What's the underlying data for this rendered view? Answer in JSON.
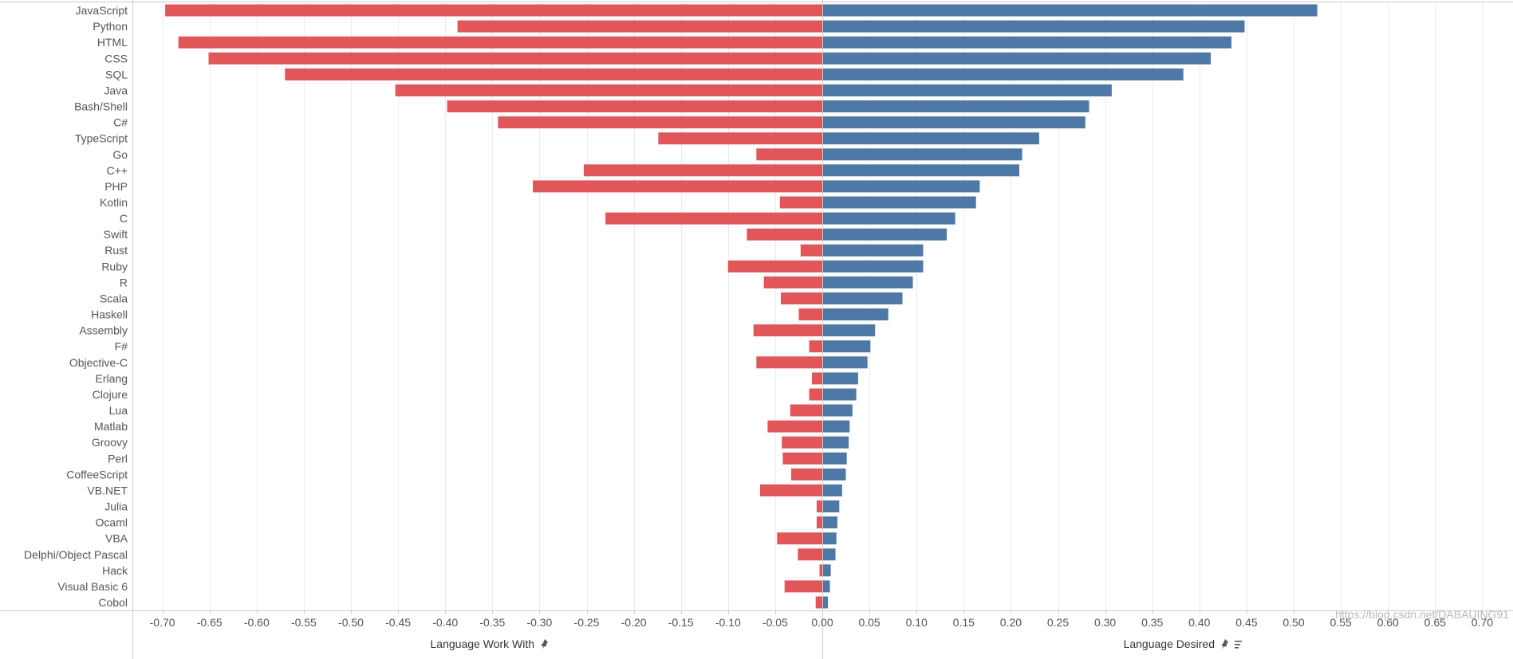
{
  "chart_data": {
    "type": "bar",
    "orientation": "horizontal",
    "layout": "diverging",
    "categories": [
      "JavaScript",
      "Python",
      "HTML",
      "CSS",
      "SQL",
      "Java",
      "Bash/Shell",
      "C#",
      "TypeScript",
      "Go",
      "C++",
      "PHP",
      "Kotlin",
      "C",
      "Swift",
      "Rust",
      "Ruby",
      "R",
      "Scala",
      "Haskell",
      "Assembly",
      "F#",
      "Objective-C",
      "Erlang",
      "Clojure",
      "Lua",
      "Matlab",
      "Groovy",
      "Perl",
      "CoffeeScript",
      "VB.NET",
      "Julia",
      "Ocaml",
      "VBA",
      "Delphi/Object Pascal",
      "Hack",
      "Visual Basic 6",
      "Cobol"
    ],
    "series": [
      {
        "name": "Language Work With",
        "color": "#e15759",
        "values": [
          -0.697,
          -0.387,
          -0.683,
          -0.651,
          -0.57,
          -0.453,
          -0.398,
          -0.344,
          -0.174,
          -0.07,
          -0.253,
          -0.307,
          -0.045,
          -0.23,
          -0.08,
          -0.023,
          -0.1,
          -0.062,
          -0.044,
          -0.025,
          -0.073,
          -0.014,
          -0.07,
          -0.011,
          -0.014,
          -0.034,
          -0.058,
          -0.043,
          -0.042,
          -0.033,
          -0.066,
          -0.006,
          -0.006,
          -0.048,
          -0.026,
          -0.003,
          -0.04,
          -0.007
        ]
      },
      {
        "name": "Language Desired",
        "color": "#4e79a7",
        "values": [
          0.525,
          0.448,
          0.434,
          0.412,
          0.383,
          0.307,
          0.283,
          0.279,
          0.23,
          0.212,
          0.209,
          0.167,
          0.163,
          0.141,
          0.132,
          0.107,
          0.107,
          0.096,
          0.085,
          0.07,
          0.056,
          0.051,
          0.048,
          0.038,
          0.036,
          0.032,
          0.029,
          0.028,
          0.026,
          0.025,
          0.021,
          0.018,
          0.016,
          0.015,
          0.014,
          0.009,
          0.008,
          0.006
        ]
      }
    ],
    "xlim": [
      -0.72,
      0.72
    ],
    "ticks": [
      "-0.70",
      "-0.65",
      "-0.60",
      "-0.55",
      "-0.50",
      "-0.45",
      "-0.40",
      "-0.35",
      "-0.30",
      "-0.25",
      "-0.20",
      "-0.15",
      "-0.10",
      "-0.05",
      "0.00",
      "0.05",
      "0.10",
      "0.15",
      "0.20",
      "0.25",
      "0.30",
      "0.35",
      "0.40",
      "0.45",
      "0.50",
      "0.55",
      "0.60",
      "0.65",
      "0.70"
    ],
    "tick_values": [
      -0.7,
      -0.65,
      -0.6,
      -0.55,
      -0.5,
      -0.45,
      -0.4,
      -0.35,
      -0.3,
      -0.25,
      -0.2,
      -0.15,
      -0.1,
      -0.05,
      0.0,
      0.05,
      0.1,
      0.15,
      0.2,
      0.25,
      0.3,
      0.35,
      0.4,
      0.45,
      0.5,
      0.55,
      0.6,
      0.65,
      0.7
    ],
    "left_axis_title": "Language Work With",
    "right_axis_title": "Language Desired",
    "grid": true
  },
  "watermark": "https://blog.csdn.net/DABAUING91",
  "icons": {
    "pin": "pin-icon",
    "sort": "sort-icon"
  },
  "colors": {
    "grid": "#ebebeb",
    "axis": "#cccccc",
    "text": "#555555"
  }
}
